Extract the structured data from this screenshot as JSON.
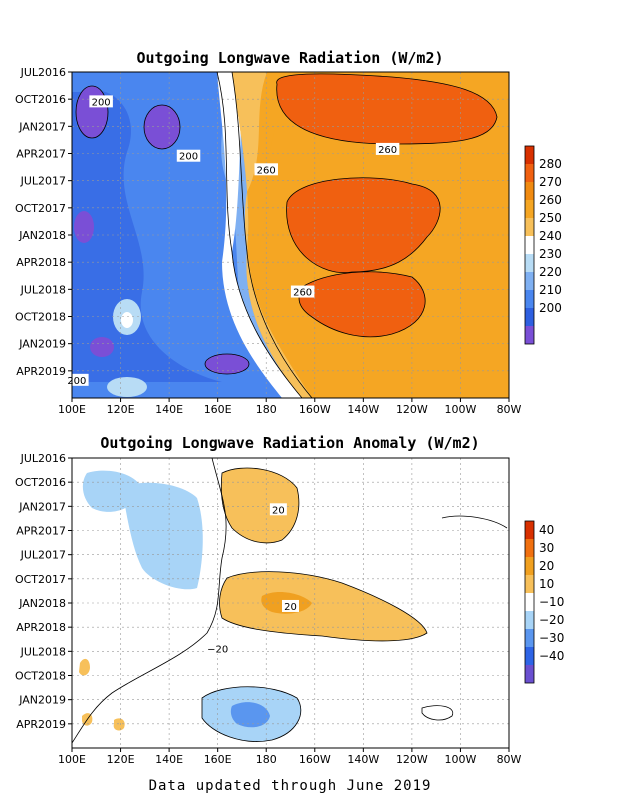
{
  "colors": {
    "olr": [
      "#7a4fd6",
      "#2e5fe0",
      "#4a86ef",
      "#7fb0f2",
      "#b8dcf5",
      "#ffffff",
      "#f7c05a",
      "#f5a623",
      "#f08a10",
      "#f06010",
      "#d83000"
    ],
    "anom": [
      "#6a50d0",
      "#2e64e6",
      "#5a96ef",
      "#a8d4f7",
      "#ffffff",
      "#f7c05a",
      "#f0a020",
      "#f07010",
      "#d83000"
    ]
  },
  "footer": "Data updated through June 2019",
  "chart_data": [
    {
      "type": "heatmap",
      "title": "Outgoing Longwave Radiation (W/m2)",
      "xlabel": "",
      "ylabel": "",
      "x_ticks": [
        "100E",
        "120E",
        "140E",
        "160E",
        "180",
        "160W",
        "140W",
        "120W",
        "100W",
        "80W"
      ],
      "y_ticks": [
        "JUL2016",
        "OCT2016",
        "JAN2017",
        "APR2017",
        "JUL2017",
        "OCT2017",
        "JAN2018",
        "APR2018",
        "JUL2018",
        "OCT2018",
        "JAN2019",
        "APR2019"
      ],
      "colorbar": [
        "200",
        "210",
        "220",
        "230",
        "240",
        "250",
        "260",
        "270",
        "280"
      ],
      "contour_labels": [
        {
          "text": "200",
          "lon": 112,
          "month": 3
        },
        {
          "text": "200",
          "lon": 148,
          "month": 11
        },
        {
          "text": "200",
          "lon": 102,
          "month": 44
        },
        {
          "text": "260",
          "lon": -130,
          "month": 10
        },
        {
          "text": "260",
          "lon": -180,
          "month": 13
        },
        {
          "text": "260",
          "lon": -165,
          "month": 31
        }
      ],
      "grid": true
    },
    {
      "type": "heatmap",
      "title": "Outgoing Longwave Radiation Anomaly (W/m2)",
      "xlabel": "",
      "ylabel": "",
      "x_ticks": [
        "100E",
        "120E",
        "140E",
        "160E",
        "180",
        "160W",
        "140W",
        "120W",
        "100W",
        "80W"
      ],
      "y_ticks": [
        "JUL2016",
        "OCT2016",
        "JAN2017",
        "APR2017",
        "JUL2017",
        "OCT2017",
        "JAN2018",
        "APR2018",
        "JUL2018",
        "OCT2018",
        "JAN2019",
        "APR2019"
      ],
      "colorbar": [
        "−40",
        "−30",
        "−20",
        "−10",
        "10",
        "20",
        "30",
        "40"
      ],
      "contour_labels": [
        {
          "text": "20",
          "lon": -175,
          "month": 7
        },
        {
          "text": "20",
          "lon": -170,
          "month": 23
        },
        {
          "text": "−20",
          "lon": 160,
          "month": 30
        }
      ],
      "grid": true
    }
  ]
}
